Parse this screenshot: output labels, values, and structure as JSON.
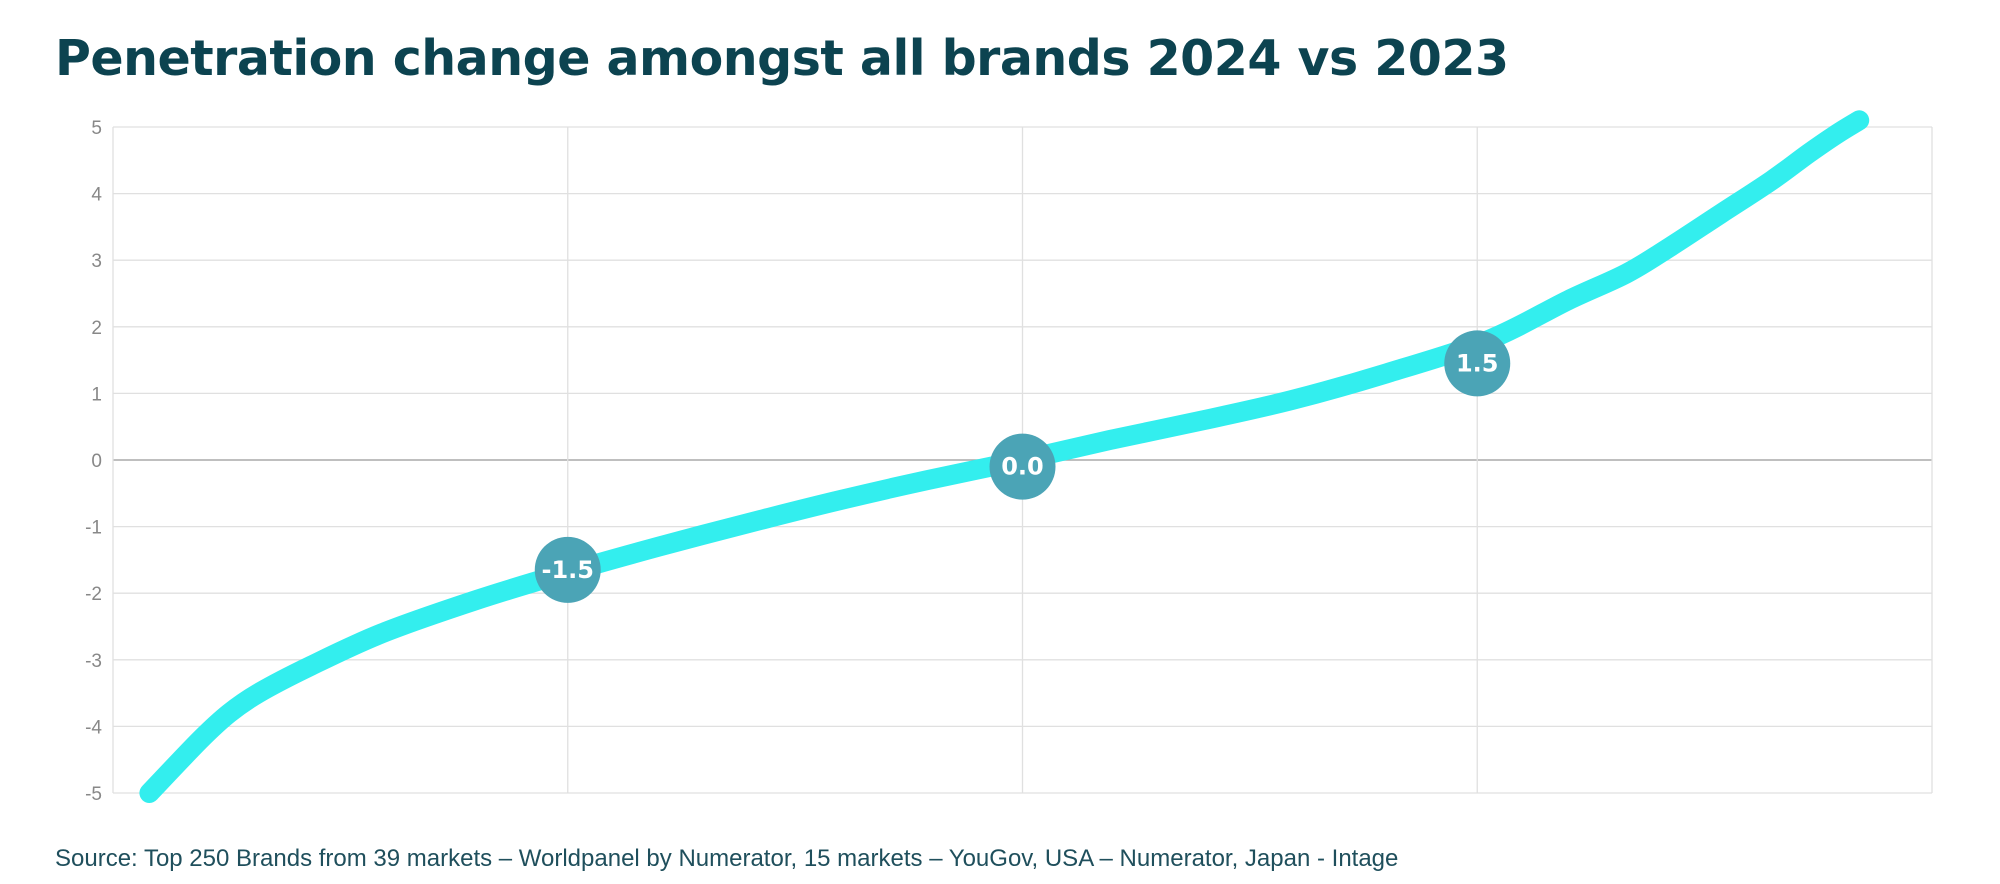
{
  "title": "Penetration change amongst all brands 2024 vs 2023",
  "source": "Source: Top 250 Brands from 39 markets – Worldpanel by Numerator, 15 markets – YouGov, USA – Numerator, Japan - Intage",
  "colors": {
    "title": "#0c4350",
    "line": "#33eeee",
    "marker": "#4ba4b6",
    "grid": "#e0e0e0",
    "zero_line": "#aaaaaa",
    "tick_text": "#888888"
  },
  "chart_data": {
    "type": "line",
    "title": "Penetration change amongst all brands 2024 vs 2023",
    "xlabel": "",
    "ylabel": "",
    "ylim": [
      -5,
      5
    ],
    "yticks": [
      "5",
      "4",
      "3",
      "2",
      "1",
      "0",
      "-1",
      "-2",
      "-3",
      "-4",
      "-5"
    ],
    "xlim": [
      0,
      250
    ],
    "grid": true,
    "legend": "none",
    "series": [
      {
        "x": [
          5,
          12,
          16,
          20,
          27,
          37,
          50,
          62,
          75,
          89,
          100,
          112,
          125,
          137,
          150,
          162,
          175,
          189,
          200,
          208,
          214,
          221,
          228,
          233,
          237,
          240
        ],
        "y": [
          -5.0,
          -4.2,
          -3.8,
          -3.5,
          -3.1,
          -2.6,
          -2.1,
          -1.7,
          -1.3,
          -0.9,
          -0.6,
          -0.3,
          0.0,
          0.3,
          0.6,
          0.9,
          1.3,
          1.8,
          2.4,
          2.8,
          3.2,
          3.7,
          4.2,
          4.6,
          4.9,
          5.1
        ]
      }
    ],
    "annotations": [
      {
        "label": "-1.5",
        "x": 62.5,
        "y": -1.65
      },
      {
        "label": "0.0",
        "x": 125,
        "y": -0.1
      },
      {
        "label": "1.5",
        "x": 187.5,
        "y": 1.45
      }
    ]
  }
}
